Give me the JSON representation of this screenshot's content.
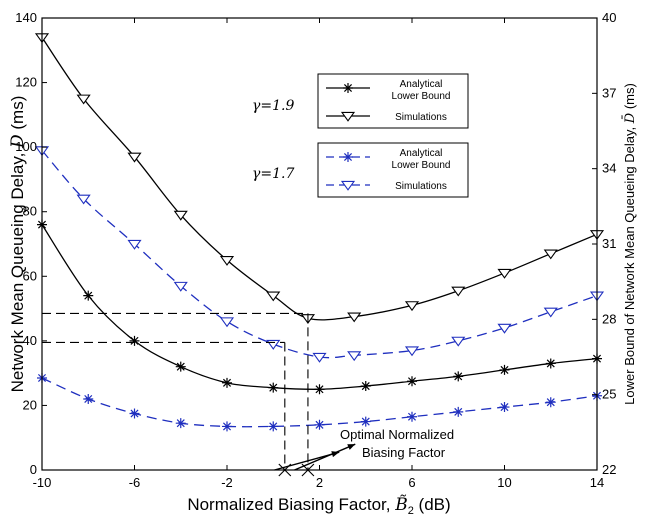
{
  "chart_data": {
    "type": "line",
    "x_tick_labels": [
      "-10",
      "-6",
      "-2",
      "2",
      "6",
      "10",
      "14"
    ],
    "x_tick_values": [
      -10,
      -6,
      -2,
      2,
      6,
      10,
      14
    ],
    "y_left_tick_labels": [
      "0",
      "20",
      "40",
      "60",
      "80",
      "100",
      "120",
      "140"
    ],
    "y_right_tick_labels": [
      "22",
      "25",
      "28",
      "31",
      "34",
      "37",
      "40"
    ],
    "xlabel": "Normalized Biasing Factor,",
    "xlabel_symbol": "B̃",
    "xlabel_sub": "2",
    "xlabel_unit": "(dB)",
    "ylabel_left": "Network Mean Queueing Delay,",
    "ylabel_left_symbol": "D",
    "ylabel_left_unit": "(ms)",
    "ylabel_right": "Lower Bound of Network Mean Queueing Delay,",
    "ylabel_right_symbol": "D̄",
    "ylabel_right_unit": "(ms)",
    "xlim": [
      -10,
      14
    ],
    "ylim_left": [
      0,
      140
    ],
    "ylim_right": [
      22,
      40
    ],
    "series": [
      {
        "name": "Simulations, γ=1.9",
        "color": "#000000",
        "dashed": false,
        "marker": "triangle-down",
        "x": [
          -10,
          -8.2,
          -6,
          -4,
          -2,
          0,
          1.5,
          3.5,
          6,
          8,
          10,
          12,
          14
        ],
        "y": [
          134,
          115,
          97,
          79,
          65,
          54,
          47,
          47.5,
          51,
          55.5,
          61,
          67,
          73
        ]
      },
      {
        "name": "Simulations, γ=1.7",
        "color": "#1f2fbf",
        "dashed": true,
        "marker": "triangle-down",
        "x": [
          -10,
          -8.2,
          -6,
          -4,
          -2,
          0,
          2,
          3.5,
          6,
          8,
          10,
          12,
          14
        ],
        "y": [
          99,
          84,
          70,
          57,
          46,
          39,
          35,
          35.5,
          37,
          40,
          44,
          49,
          54
        ]
      },
      {
        "name": "Analytical Lower Bound, γ=1.9",
        "color": "#000000",
        "dashed": false,
        "marker": "asterisk",
        "x": [
          -10,
          -8,
          -6,
          -4,
          -2,
          0,
          2,
          4,
          6,
          8,
          10,
          12,
          14
        ],
        "y": [
          76,
          54,
          40,
          32,
          27,
          25.5,
          25,
          26,
          27.5,
          29,
          31,
          33,
          34.5
        ]
      },
      {
        "name": "Analytical Lower Bound, γ=1.7",
        "color": "#1f2fbf",
        "dashed": true,
        "marker": "asterisk",
        "x": [
          -10,
          -8,
          -6,
          -4,
          -2,
          0,
          2,
          4,
          6,
          8,
          10,
          12,
          14
        ],
        "y": [
          28.5,
          22,
          17.5,
          14.5,
          13.5,
          13.5,
          14,
          15,
          16.5,
          18,
          19.5,
          21,
          23
        ]
      }
    ],
    "legend_groups": [
      {
        "gamma_label": "γ=1.9",
        "color": "#000000",
        "dashed": false,
        "entries": [
          {
            "marker": "asterisk",
            "lines": [
              "Analytical",
              "Lower Bound"
            ]
          },
          {
            "marker": "triangle-down",
            "lines": [
              "Simulations"
            ]
          }
        ]
      },
      {
        "gamma_label": "γ=1.7",
        "color": "#1f2fbf",
        "dashed": true,
        "entries": [
          {
            "marker": "asterisk",
            "lines": [
              "Analytical",
              "Lower Bound"
            ]
          },
          {
            "marker": "triangle-down",
            "lines": [
              "Simulations"
            ]
          }
        ]
      }
    ],
    "optimal_markers": [
      {
        "x": 0.5,
        "y_line": 39.5,
        "x_line_start": -10
      },
      {
        "x": 1.5,
        "y_line": 48.5,
        "x_line_start": -10
      }
    ],
    "annotation": {
      "lines": [
        "Optimal Normalized",
        "Biasing Factor"
      ],
      "arrow_from": [
        2.0,
        0
      ],
      "arrow_to": [
        3.2,
        8
      ]
    }
  }
}
